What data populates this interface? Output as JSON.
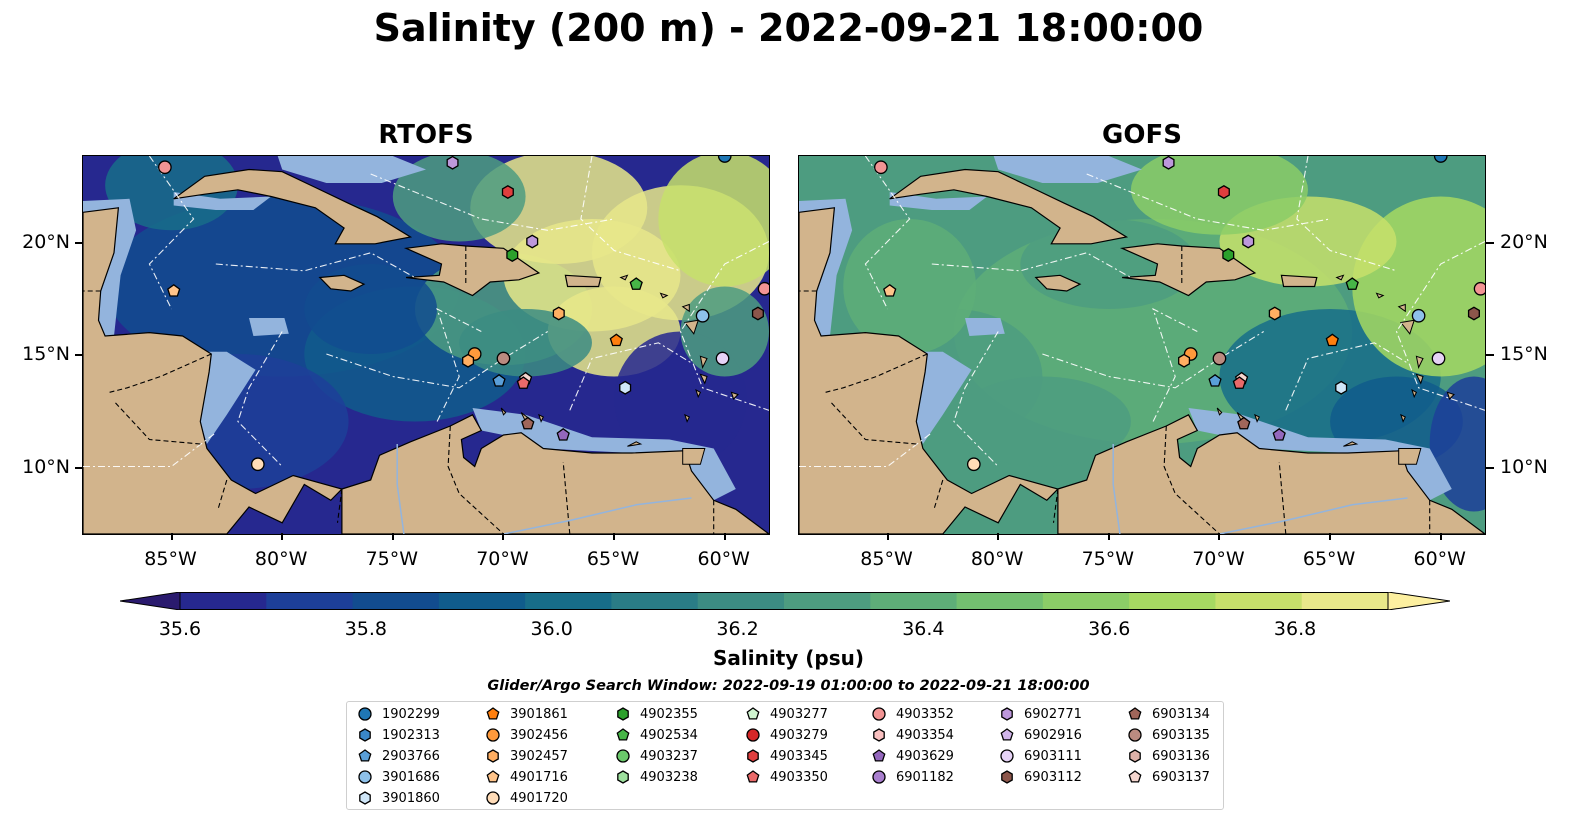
{
  "title": "Salinity (200 m) - 2022-09-21 18:00:00",
  "panels": [
    {
      "title": "RTOFS"
    },
    {
      "title": "GOFS"
    }
  ],
  "x_ticks": [
    "85°W",
    "80°W",
    "75°W",
    "70°W",
    "65°W",
    "60°W"
  ],
  "y_ticks": [
    "20°N",
    "15°N",
    "10°N"
  ],
  "map_extent": {
    "lon": [
      -89,
      -58
    ],
    "lat": [
      7,
      23.8
    ]
  },
  "colorbar": {
    "label": "Salinity (psu)",
    "ticks": [
      "35.6",
      "35.8",
      "36.0",
      "36.2",
      "36.4",
      "36.6",
      "36.8"
    ],
    "range": [
      35.6,
      36.9
    ],
    "colors": [
      "#2a1a6e",
      "#26288f",
      "#1d3f99",
      "#124c8f",
      "#105c8c",
      "#176d89",
      "#2a7c86",
      "#3c8c83",
      "#4d9c80",
      "#5eae78",
      "#73bf70",
      "#8bcd67",
      "#a6d962",
      "#c7e06b",
      "#e8e88a",
      "#fdf0a0"
    ]
  },
  "legend": {
    "title": "Glider/Argo Search Window: 2022-09-19 01:00:00 to 2022-09-21 18:00:00",
    "columns": [
      [
        {
          "id": "1902299",
          "marker": "circle",
          "color": "#1f77b4"
        },
        {
          "id": "1902313",
          "marker": "hexagon",
          "color": "#3a87c8"
        },
        {
          "id": "2903766",
          "marker": "pentagon",
          "color": "#5a9fd8"
        },
        {
          "id": "3901686",
          "marker": "circle",
          "color": "#8ec1ea"
        },
        {
          "id": "3901860",
          "marker": "hexagon",
          "color": "#cfe6f8"
        }
      ],
      [
        {
          "id": "3901861",
          "marker": "pentagon",
          "color": "#ff7f0e"
        },
        {
          "id": "3902456",
          "marker": "circle",
          "color": "#ff9a3c"
        },
        {
          "id": "3902457",
          "marker": "hexagon",
          "color": "#ffae62"
        },
        {
          "id": "4901716",
          "marker": "pentagon",
          "color": "#ffc48a"
        },
        {
          "id": "4901720",
          "marker": "circle",
          "color": "#ffdcb8"
        }
      ],
      [
        {
          "id": "4902355",
          "marker": "hexagon",
          "color": "#2ca02c"
        },
        {
          "id": "4902534",
          "marker": "pentagon",
          "color": "#47b547"
        },
        {
          "id": "4903237",
          "marker": "circle",
          "color": "#6bc96b"
        },
        {
          "id": "4903238",
          "marker": "hexagon",
          "color": "#9ee09e"
        }
      ],
      [
        {
          "id": "4903277",
          "marker": "pentagon",
          "color": "#d0f5d0"
        },
        {
          "id": "4903279",
          "marker": "circle",
          "color": "#d62728"
        },
        {
          "id": "4903345",
          "marker": "hexagon",
          "color": "#e03e3e"
        },
        {
          "id": "4903350",
          "marker": "pentagon",
          "color": "#ea6a6a"
        }
      ],
      [
        {
          "id": "4903352",
          "marker": "circle",
          "color": "#f29494"
        },
        {
          "id": "4903354",
          "marker": "hexagon",
          "color": "#f9c0c0"
        },
        {
          "id": "4903629",
          "marker": "pentagon",
          "color": "#9467bd"
        },
        {
          "id": "6901182",
          "marker": "circle",
          "color": "#a97fce"
        }
      ],
      [
        {
          "id": "6902771",
          "marker": "hexagon",
          "color": "#bd98dc"
        },
        {
          "id": "6902916",
          "marker": "pentagon",
          "color": "#d1b5ea"
        },
        {
          "id": "6903111",
          "marker": "circle",
          "color": "#e6d3f6"
        },
        {
          "id": "6903112",
          "marker": "hexagon",
          "color": "#8c564b"
        }
      ],
      [
        {
          "id": "6903134",
          "marker": "pentagon",
          "color": "#a0665a"
        },
        {
          "id": "6903135",
          "marker": "circle",
          "color": "#bb8b80"
        },
        {
          "id": "6903136",
          "marker": "hexagon",
          "color": "#ddb1a8"
        },
        {
          "id": "6903137",
          "marker": "pentagon",
          "color": "#f5d6cf"
        }
      ]
    ]
  },
  "land_color": "#d2b48c",
  "shelf_color": "#93b4dd",
  "floats": [
    {
      "lon": -85.3,
      "lat": 23.3,
      "marker": "circle",
      "color": "#f29494"
    },
    {
      "lon": -72.3,
      "lat": 23.5,
      "marker": "hexagon",
      "color": "#bd98dc"
    },
    {
      "lon": -60.0,
      "lat": 23.8,
      "marker": "circle",
      "color": "#1f77b4"
    },
    {
      "lon": -69.8,
      "lat": 22.2,
      "marker": "hexagon",
      "color": "#e03e3e"
    },
    {
      "lon": -68.7,
      "lat": 20.0,
      "marker": "hexagon",
      "color": "#bd98dc"
    },
    {
      "lon": -69.6,
      "lat": 19.4,
      "marker": "hexagon",
      "color": "#2ca02c"
    },
    {
      "lon": -84.9,
      "lat": 17.8,
      "marker": "pentagon",
      "color": "#ffc48a"
    },
    {
      "lon": -64.0,
      "lat": 18.1,
      "marker": "pentagon",
      "color": "#47b547"
    },
    {
      "lon": -58.2,
      "lat": 17.9,
      "marker": "circle",
      "color": "#f29494"
    },
    {
      "lon": -67.5,
      "lat": 16.8,
      "marker": "hexagon",
      "color": "#ffae62"
    },
    {
      "lon": -61.0,
      "lat": 16.7,
      "marker": "circle",
      "color": "#8ec1ea"
    },
    {
      "lon": -58.5,
      "lat": 16.8,
      "marker": "hexagon",
      "color": "#8c564b"
    },
    {
      "lon": -64.9,
      "lat": 15.6,
      "marker": "pentagon",
      "color": "#ff7f0e"
    },
    {
      "lon": -71.3,
      "lat": 15.0,
      "marker": "circle",
      "color": "#ff9a3c"
    },
    {
      "lon": -71.6,
      "lat": 14.7,
      "marker": "hexagon",
      "color": "#ffae62"
    },
    {
      "lon": -70.0,
      "lat": 14.8,
      "marker": "circle",
      "color": "#bb8b80"
    },
    {
      "lon": -60.1,
      "lat": 14.8,
      "marker": "circle",
      "color": "#e6d3f6"
    },
    {
      "lon": -70.2,
      "lat": 13.8,
      "marker": "pentagon",
      "color": "#5a9fd8"
    },
    {
      "lon": -69.0,
      "lat": 13.9,
      "marker": "pentagon",
      "color": "#f5d6cf"
    },
    {
      "lon": -69.1,
      "lat": 13.7,
      "marker": "pentagon",
      "color": "#ea6a6a"
    },
    {
      "lon": -64.5,
      "lat": 13.5,
      "marker": "hexagon",
      "color": "#cfe6f8"
    },
    {
      "lon": -68.9,
      "lat": 11.9,
      "marker": "pentagon",
      "color": "#a0665a"
    },
    {
      "lon": -67.3,
      "lat": 11.4,
      "marker": "pentagon",
      "color": "#9467bd"
    },
    {
      "lon": -81.1,
      "lat": 10.1,
      "marker": "circle",
      "color": "#ffdcb8"
    }
  ]
}
